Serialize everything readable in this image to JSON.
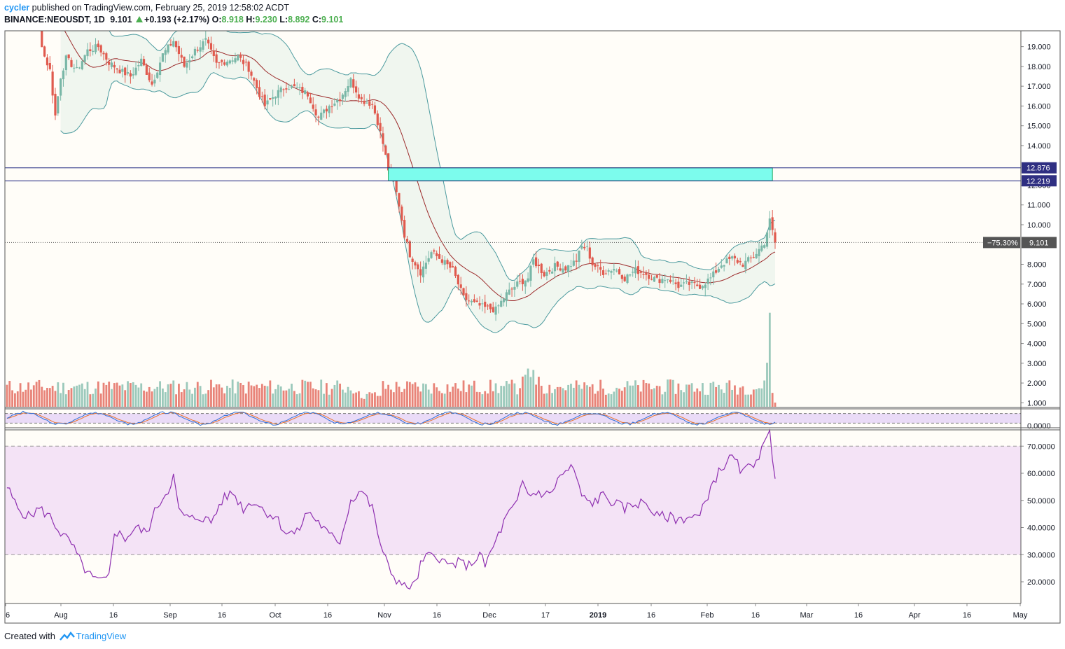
{
  "header": {
    "user": "cycler",
    "published": "published on TradingView.com, February 25, 2019 12:58:02 ACDT",
    "symbol": "BINANCE:NEOUSDT, 1D",
    "last": "9.101",
    "change": "+0.193 (+2.17%)",
    "o_label": "O:",
    "o_value": "8.918",
    "h_label": "H:",
    "h_value": "9.230",
    "l_label": "L:",
    "l_value": "8.892",
    "c_label": "C:",
    "c_value": "9.101"
  },
  "footer": {
    "created": "Created with",
    "brand": "TradingView"
  },
  "colors": {
    "up": "#79b7a7",
    "down": "#e05a4e",
    "band": "#4b9a9e",
    "basis": "#9c2b2b",
    "zone": "#7cfced",
    "level": "#1a237e",
    "rsi": "#8e2fb0",
    "rsi_fill": "#f4e3f6",
    "stoch_k": "#2f6fd8",
    "stoch_d": "#e8742f",
    "stoch_fill": "#e5d2f6",
    "label_bg": "#2f2f82"
  },
  "chart_data": [
    {
      "type": "candlestick",
      "symbol": "BINANCE:NEOUSDT",
      "interval": "1D",
      "y_axis_ticks": [
        "19.000",
        "18.000",
        "17.000",
        "16.000",
        "15.000",
        "14.000",
        "12.000",
        "11.000",
        "10.000",
        "8.000",
        "7.000",
        "6.000",
        "5.000",
        "4.000",
        "3.000",
        "2.000",
        "1.000"
      ],
      "ylim": [
        0.8,
        19.8
      ],
      "x_axis_ticks": [
        "6",
        "Aug",
        "16",
        "Sep",
        "16",
        "Oct",
        "16",
        "Nov",
        "16",
        "Dec",
        "17",
        "2019",
        "16",
        "Feb",
        "16",
        "Mar",
        "16",
        "Apr",
        "16",
        "May"
      ],
      "horizontal_levels": [
        {
          "value": 12.876,
          "label": "12.876"
        },
        {
          "value": 12.219,
          "label": "12.219"
        }
      ],
      "last_price": {
        "value": 9.101,
        "label": "9.101",
        "change_label": "−75.30%"
      },
      "close_points": [
        [
          0,
          24.0
        ],
        [
          6,
          22.5
        ],
        [
          10,
          21.0
        ],
        [
          14,
          18.5
        ],
        [
          16,
          17.8
        ],
        [
          18,
          15.5
        ],
        [
          20,
          17.5
        ],
        [
          22,
          18.4
        ],
        [
          26,
          17.8
        ],
        [
          30,
          18.8
        ],
        [
          34,
          19.0
        ],
        [
          38,
          18.2
        ],
        [
          42,
          17.8
        ],
        [
          46,
          17.5
        ],
        [
          50,
          18.3
        ],
        [
          54,
          17.1
        ],
        [
          58,
          18.6
        ],
        [
          62,
          19.3
        ],
        [
          66,
          18.0
        ],
        [
          70,
          18.8
        ],
        [
          74,
          19.3
        ],
        [
          78,
          18.1
        ],
        [
          82,
          18.3
        ],
        [
          86,
          18.5
        ],
        [
          90,
          17.9
        ],
        [
          94,
          16.6
        ],
        [
          96,
          16.0
        ],
        [
          100,
          16.6
        ],
        [
          104,
          17.0
        ],
        [
          108,
          16.9
        ],
        [
          112,
          16.6
        ],
        [
          116,
          15.4
        ],
        [
          120,
          16.0
        ],
        [
          124,
          16.4
        ],
        [
          128,
          17.3
        ],
        [
          132,
          16.3
        ],
        [
          136,
          16.1
        ],
        [
          138,
          15.2
        ],
        [
          140,
          14.1
        ],
        [
          142,
          12.8
        ],
        [
          144,
          12.2
        ],
        [
          146,
          11.0
        ],
        [
          148,
          9.5
        ],
        [
          150,
          8.5
        ],
        [
          154,
          7.6
        ],
        [
          158,
          8.6
        ],
        [
          162,
          8.2
        ],
        [
          166,
          7.7
        ],
        [
          168,
          7.0
        ],
        [
          170,
          6.3
        ],
        [
          174,
          6.0
        ],
        [
          178,
          5.8
        ],
        [
          182,
          5.7
        ],
        [
          186,
          6.5
        ],
        [
          190,
          7.0
        ],
        [
          194,
          7.3
        ],
        [
          196,
          8.2
        ],
        [
          200,
          7.5
        ],
        [
          204,
          7.9
        ],
        [
          208,
          7.8
        ],
        [
          212,
          8.2
        ],
        [
          214,
          8.9
        ],
        [
          216,
          8.8
        ],
        [
          218,
          8.0
        ],
        [
          222,
          7.6
        ],
        [
          226,
          7.8
        ],
        [
          230,
          7.3
        ],
        [
          234,
          7.7
        ],
        [
          238,
          7.5
        ],
        [
          242,
          7.2
        ],
        [
          246,
          7.3
        ],
        [
          250,
          6.9
        ],
        [
          254,
          7.0
        ],
        [
          258,
          6.9
        ],
        [
          262,
          7.3
        ],
        [
          266,
          8.0
        ],
        [
          270,
          8.3
        ],
        [
          274,
          8.0
        ],
        [
          278,
          8.4
        ],
        [
          282,
          9.1
        ],
        [
          284,
          10.2
        ],
        [
          286,
          9.1
        ]
      ]
    },
    {
      "type": "bar",
      "name": "Volume",
      "note": "volume bars drawn in lower portion of price pane, green on up days, red on down days",
      "spike_index": 284
    },
    {
      "type": "line",
      "name": "Stochastic RSI",
      "series": [
        {
          "name": "K"
        },
        {
          "name": "D"
        }
      ],
      "bands": [
        80,
        20
      ],
      "y_axis_ticks": [
        "0.0000"
      ]
    },
    {
      "type": "line",
      "name": "RSI",
      "y_axis_ticks": [
        "70.0000",
        "60.0000",
        "50.0000",
        "40.0000",
        "30.0000",
        "20.0000"
      ],
      "ylim": [
        12,
        76
      ],
      "bands": [
        70,
        30
      ],
      "points": [
        [
          0,
          55
        ],
        [
          4,
          47
        ],
        [
          8,
          44
        ],
        [
          12,
          47
        ],
        [
          16,
          44
        ],
        [
          20,
          38
        ],
        [
          24,
          34
        ],
        [
          28,
          26
        ],
        [
          32,
          21
        ],
        [
          36,
          20
        ],
        [
          38,
          22
        ],
        [
          40,
          39
        ],
        [
          44,
          36
        ],
        [
          48,
          40
        ],
        [
          52,
          38
        ],
        [
          56,
          48
        ],
        [
          60,
          54
        ],
        [
          62,
          59
        ],
        [
          64,
          46
        ],
        [
          68,
          43
        ],
        [
          72,
          44
        ],
        [
          76,
          42
        ],
        [
          80,
          50
        ],
        [
          84,
          53
        ],
        [
          88,
          47
        ],
        [
          92,
          50
        ],
        [
          96,
          46
        ],
        [
          100,
          44
        ],
        [
          104,
          38
        ],
        [
          108,
          38
        ],
        [
          112,
          46
        ],
        [
          116,
          42
        ],
        [
          120,
          37
        ],
        [
          124,
          35
        ],
        [
          128,
          50
        ],
        [
          132,
          54
        ],
        [
          136,
          47
        ],
        [
          140,
          30
        ],
        [
          144,
          22
        ],
        [
          148,
          18
        ],
        [
          152,
          19
        ],
        [
          154,
          26
        ],
        [
          156,
          29
        ],
        [
          160,
          30
        ],
        [
          164,
          26
        ],
        [
          168,
          27
        ],
        [
          172,
          26
        ],
        [
          176,
          30
        ],
        [
          178,
          26
        ],
        [
          182,
          35
        ],
        [
          186,
          44
        ],
        [
          190,
          49
        ],
        [
          192,
          57
        ],
        [
          194,
          52
        ],
        [
          198,
          53
        ],
        [
          202,
          52
        ],
        [
          206,
          59
        ],
        [
          210,
          62
        ],
        [
          212,
          59
        ],
        [
          214,
          51
        ],
        [
          218,
          49
        ],
        [
          222,
          52
        ],
        [
          226,
          49
        ],
        [
          230,
          47
        ],
        [
          234,
          49
        ],
        [
          238,
          49
        ],
        [
          242,
          44
        ],
        [
          246,
          44
        ],
        [
          250,
          43
        ],
        [
          254,
          44
        ],
        [
          258,
          44
        ],
        [
          262,
          55
        ],
        [
          266,
          62
        ],
        [
          270,
          66
        ],
        [
          274,
          60
        ],
        [
          278,
          64
        ],
        [
          282,
          70
        ],
        [
          284,
          75
        ],
        [
          286,
          58
        ]
      ]
    }
  ]
}
